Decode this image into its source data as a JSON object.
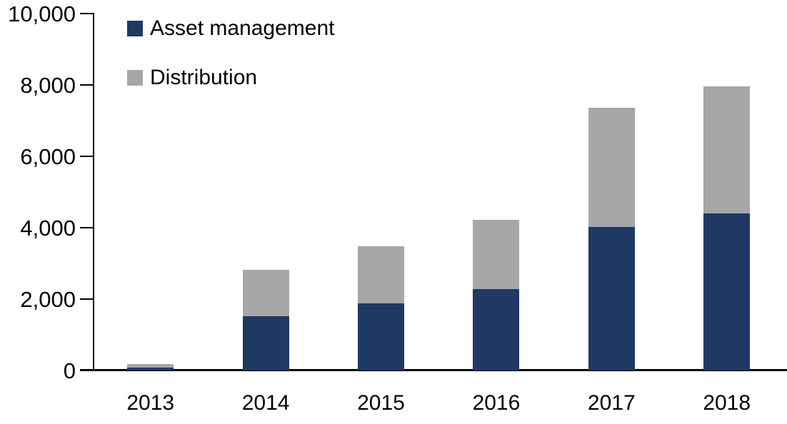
{
  "chart_data": {
    "type": "bar",
    "stacked": true,
    "title": "",
    "categories": [
      "2013",
      "2014",
      "2015",
      "2016",
      "2017",
      "2018"
    ],
    "series": [
      {
        "name": "Asset management",
        "color": "#203864",
        "values": [
          90,
          1530,
          1880,
          2290,
          4030,
          4400
        ]
      },
      {
        "name": "Distribution",
        "color": "#A6A6A6",
        "values": [
          95,
          1300,
          1610,
          1930,
          3330,
          3570
        ]
      }
    ],
    "totals_estimated": [
      185,
      2830,
      3490,
      4220,
      7360,
      7970
    ],
    "xlabel": "",
    "ylabel": "",
    "ylim": [
      0,
      10000
    ],
    "yticks": [
      {
        "value": 0,
        "label": "0"
      },
      {
        "value": 2000,
        "label": "2,000"
      },
      {
        "value": 4000,
        "label": "4,000"
      },
      {
        "value": 6000,
        "label": "6,000"
      },
      {
        "value": 8000,
        "label": "8,000"
      },
      {
        "value": 10000,
        "label": "10,000"
      }
    ],
    "grid": false,
    "legend_position": "top-left-inside",
    "axis_color": "#000000",
    "background_color": "#FFFFFF"
  }
}
